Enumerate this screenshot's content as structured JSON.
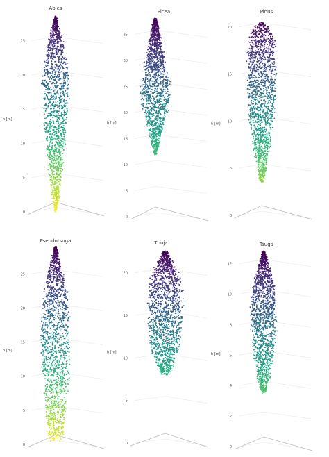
{
  "figure": {
    "background": "#ffffff"
  },
  "colormap": {
    "name": "viridis",
    "stops": [
      "#440154",
      "#482878",
      "#3e4989",
      "#31688e",
      "#26828e",
      "#1f9e89",
      "#35b779",
      "#6ece58",
      "#b5de2b",
      "#fde725"
    ]
  },
  "chart_data": [
    {
      "type": "scatter",
      "title": "Abies",
      "ylabel": "h [m]",
      "ticks": [
        0,
        5,
        10,
        15,
        20,
        25
      ],
      "ylim": [
        0,
        28.5
      ],
      "grid": true,
      "profile": [
        [
          0,
          0
        ],
        [
          1.5,
          0.07
        ],
        [
          3,
          0.1
        ],
        [
          5,
          0.16
        ],
        [
          8,
          0.2
        ],
        [
          11,
          0.26
        ],
        [
          14,
          0.3
        ],
        [
          17,
          0.34
        ],
        [
          20,
          0.34
        ],
        [
          22,
          0.3
        ],
        [
          24,
          0.22
        ],
        [
          26,
          0.13
        ],
        [
          27.5,
          0.06
        ],
        [
          28.5,
          0.01
        ]
      ]
    },
    {
      "type": "scatter",
      "title": "Picea",
      "ylabel": "h [m]",
      "ticks": [
        0,
        5,
        10,
        15,
        20,
        25,
        30,
        35
      ],
      "ylim": [
        0,
        38
      ],
      "grid": true,
      "profile": [
        [
          12,
          0.03
        ],
        [
          13,
          0.12
        ],
        [
          15,
          0.18
        ],
        [
          17,
          0.3
        ],
        [
          20,
          0.48
        ],
        [
          22,
          0.56
        ],
        [
          24,
          0.6
        ],
        [
          26,
          0.56
        ],
        [
          28,
          0.46
        ],
        [
          30,
          0.38
        ],
        [
          32,
          0.3
        ],
        [
          34,
          0.22
        ],
        [
          36,
          0.15
        ],
        [
          37.5,
          0.08
        ],
        [
          38,
          0.03
        ]
      ]
    },
    {
      "type": "scatter",
      "title": "Pinus",
      "ylabel": "h [m]",
      "ticks": [
        0,
        5,
        10,
        15,
        20
      ],
      "ylim": [
        0,
        20.5
      ],
      "grid": true,
      "profile": [
        [
          3.5,
          0.05
        ],
        [
          5,
          0.12
        ],
        [
          7,
          0.22
        ],
        [
          9,
          0.3
        ],
        [
          11,
          0.36
        ],
        [
          13,
          0.4
        ],
        [
          15,
          0.42
        ],
        [
          17,
          0.42
        ],
        [
          18.5,
          0.38
        ],
        [
          19.5,
          0.28
        ],
        [
          20.2,
          0.15
        ],
        [
          20.5,
          0.03
        ]
      ]
    },
    {
      "type": "scatter",
      "title": "Pseudotsuga",
      "ylabel": "h [m]",
      "ticks": [
        0,
        5,
        10,
        15,
        20,
        25
      ],
      "ylim": [
        0,
        29
      ],
      "grid": true,
      "profile": [
        [
          0.5,
          0.18
        ],
        [
          2,
          0.22
        ],
        [
          4,
          0.26
        ],
        [
          7,
          0.3
        ],
        [
          10,
          0.36
        ],
        [
          13,
          0.38
        ],
        [
          16,
          0.38
        ],
        [
          19,
          0.36
        ],
        [
          22,
          0.3
        ],
        [
          24,
          0.24
        ],
        [
          26,
          0.16
        ],
        [
          27.5,
          0.09
        ],
        [
          29,
          0.02
        ]
      ]
    },
    {
      "type": "scatter",
      "title": "Thuja",
      "ylabel": "h [m]",
      "ticks": [
        0,
        5,
        10,
        15,
        20
      ],
      "ylim": [
        0,
        22.5
      ],
      "grid": true,
      "profile": [
        [
          8,
          0.08
        ],
        [
          9,
          0.22
        ],
        [
          10.5,
          0.35
        ],
        [
          12,
          0.42
        ],
        [
          14,
          0.48
        ],
        [
          16,
          0.5
        ],
        [
          18,
          0.48
        ],
        [
          19.5,
          0.42
        ],
        [
          20.5,
          0.3
        ],
        [
          21.5,
          0.18
        ],
        [
          22.5,
          0.05
        ]
      ]
    },
    {
      "type": "scatter",
      "title": "Tsuga",
      "ylabel": "h [m]",
      "ticks": [
        0,
        2,
        4,
        6,
        8,
        10,
        12
      ],
      "ylim": [
        0,
        12.8
      ],
      "grid": true,
      "profile": [
        [
          3.5,
          0.06
        ],
        [
          4.5,
          0.2
        ],
        [
          6,
          0.32
        ],
        [
          7.5,
          0.4
        ],
        [
          9,
          0.42
        ],
        [
          10.2,
          0.38
        ],
        [
          11.2,
          0.28
        ],
        [
          12,
          0.16
        ],
        [
          12.8,
          0.03
        ]
      ]
    }
  ]
}
